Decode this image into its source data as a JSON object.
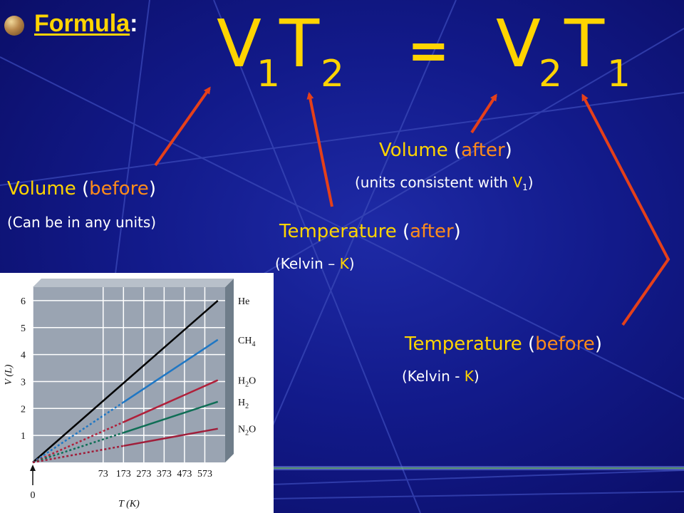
{
  "heading": {
    "label": "Formula",
    "colon": ":"
  },
  "equation": {
    "v1": "V",
    "v1_sub": "1",
    "t2": "T",
    "t2_sub": "2",
    "equals": "=",
    "v2": "V",
    "v2_sub": "2",
    "t1": "T",
    "t1_sub": "1"
  },
  "annotations": {
    "volume_before": {
      "word": "Volume",
      "open": " (",
      "qual": "before",
      "close": ")",
      "note": "(Can be in any units)"
    },
    "volume_after": {
      "word": "Volume",
      "open": " (",
      "qual": "after",
      "close": ")",
      "note": "(units consistent with ",
      "note_v": "V",
      "note_sub": "1",
      "note_close": ")"
    },
    "temperature_after": {
      "word": "Temperature",
      "open": " (",
      "qual": "after",
      "close": ")",
      "note_a": "(Kelvin – ",
      "note_k": "K",
      "note_b": ")"
    },
    "temperature_before": {
      "word": "Temperature",
      "open": " (",
      "qual": "before",
      "close": ")",
      "note_a": "(Kelvin - ",
      "note_k": "K",
      "note_b": ")"
    }
  },
  "colors": {
    "yellow": "#ffd400",
    "orange": "#ff8c1a",
    "arrow": "#e5401a",
    "background": "#121a8a"
  },
  "chart_data": {
    "type": "line",
    "xlabel": "T (K)",
    "ylabel": "V (L)",
    "xlim": [
      -273,
      673
    ],
    "ylim": [
      0,
      6.5
    ],
    "x_ticks": [
      73,
      173,
      273,
      373,
      473,
      573
    ],
    "y_ticks": [
      1,
      2,
      3,
      4,
      5,
      6
    ],
    "zero_label": "0",
    "series": [
      {
        "name": "He",
        "color": "#000000",
        "points": [
          [
            -273,
            0
          ],
          [
            637,
            6.0
          ]
        ]
      },
      {
        "name": "CH4",
        "color": "#1f77c4",
        "points": [
          [
            -273,
            0
          ],
          [
            637,
            4.55
          ]
        ]
      },
      {
        "name": "H2O",
        "color": "#b0203a",
        "points": [
          [
            -273,
            0
          ],
          [
            637,
            3.05
          ]
        ]
      },
      {
        "name": "H2",
        "color": "#0f6e55",
        "points": [
          [
            -273,
            0
          ],
          [
            637,
            2.25
          ]
        ]
      },
      {
        "name": "N2O",
        "color": "#a01e3a",
        "points": [
          [
            -273,
            0
          ],
          [
            637,
            1.25
          ]
        ]
      }
    ],
    "extrapolated_below": 173,
    "grid": true
  }
}
